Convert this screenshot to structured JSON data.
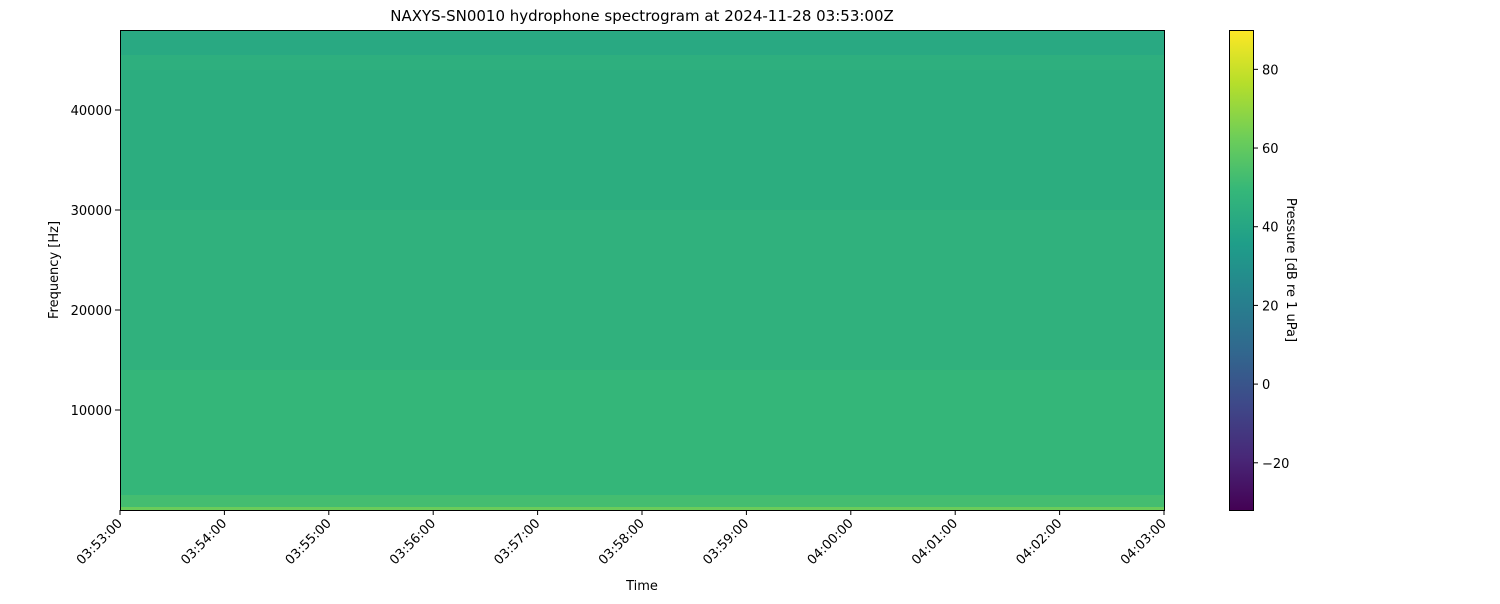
{
  "chart_data": {
    "type": "heatmap",
    "title": "NAXYS-SN0010 hydrophone spectrogram at 2024-11-28 03:53:00Z",
    "xlabel": "Time",
    "ylabel": "Frequency [Hz]",
    "xlim": [
      "03:53:00",
      "04:03:00"
    ],
    "ylim": [
      0,
      48000
    ],
    "x_ticks": [
      "03:53:00",
      "03:54:00",
      "03:55:00",
      "03:56:00",
      "03:57:00",
      "03:58:00",
      "03:59:00",
      "04:00:00",
      "04:01:00",
      "04:02:00",
      "04:03:00"
    ],
    "y_ticks": [
      10000,
      20000,
      30000,
      40000
    ],
    "y_tick_labels": [
      "10000",
      "20000",
      "30000",
      "40000"
    ],
    "colormap": "viridis",
    "colorbar": {
      "label": "Pressure [dB re 1 uPa]",
      "range": [
        -32,
        90
      ],
      "ticks": [
        -20,
        0,
        20,
        40,
        60,
        80
      ],
      "tick_labels": [
        "−20",
        "0",
        "20",
        "40",
        "60",
        "80"
      ]
    },
    "frequency_bands": [
      {
        "f_low": 0,
        "f_high": 300,
        "level_db": 62
      },
      {
        "f_low": 300,
        "f_high": 1500,
        "level_db": 53
      },
      {
        "f_low": 1500,
        "f_high": 14000,
        "level_db": 49
      },
      {
        "f_low": 14000,
        "f_high": 30000,
        "level_db": 46
      },
      {
        "f_low": 30000,
        "f_high": 44000,
        "level_db": 44
      },
      {
        "f_low": 44000,
        "f_high": 45500,
        "level_db": 45
      },
      {
        "f_low": 45500,
        "f_high": 48000,
        "level_db": 42
      }
    ]
  }
}
